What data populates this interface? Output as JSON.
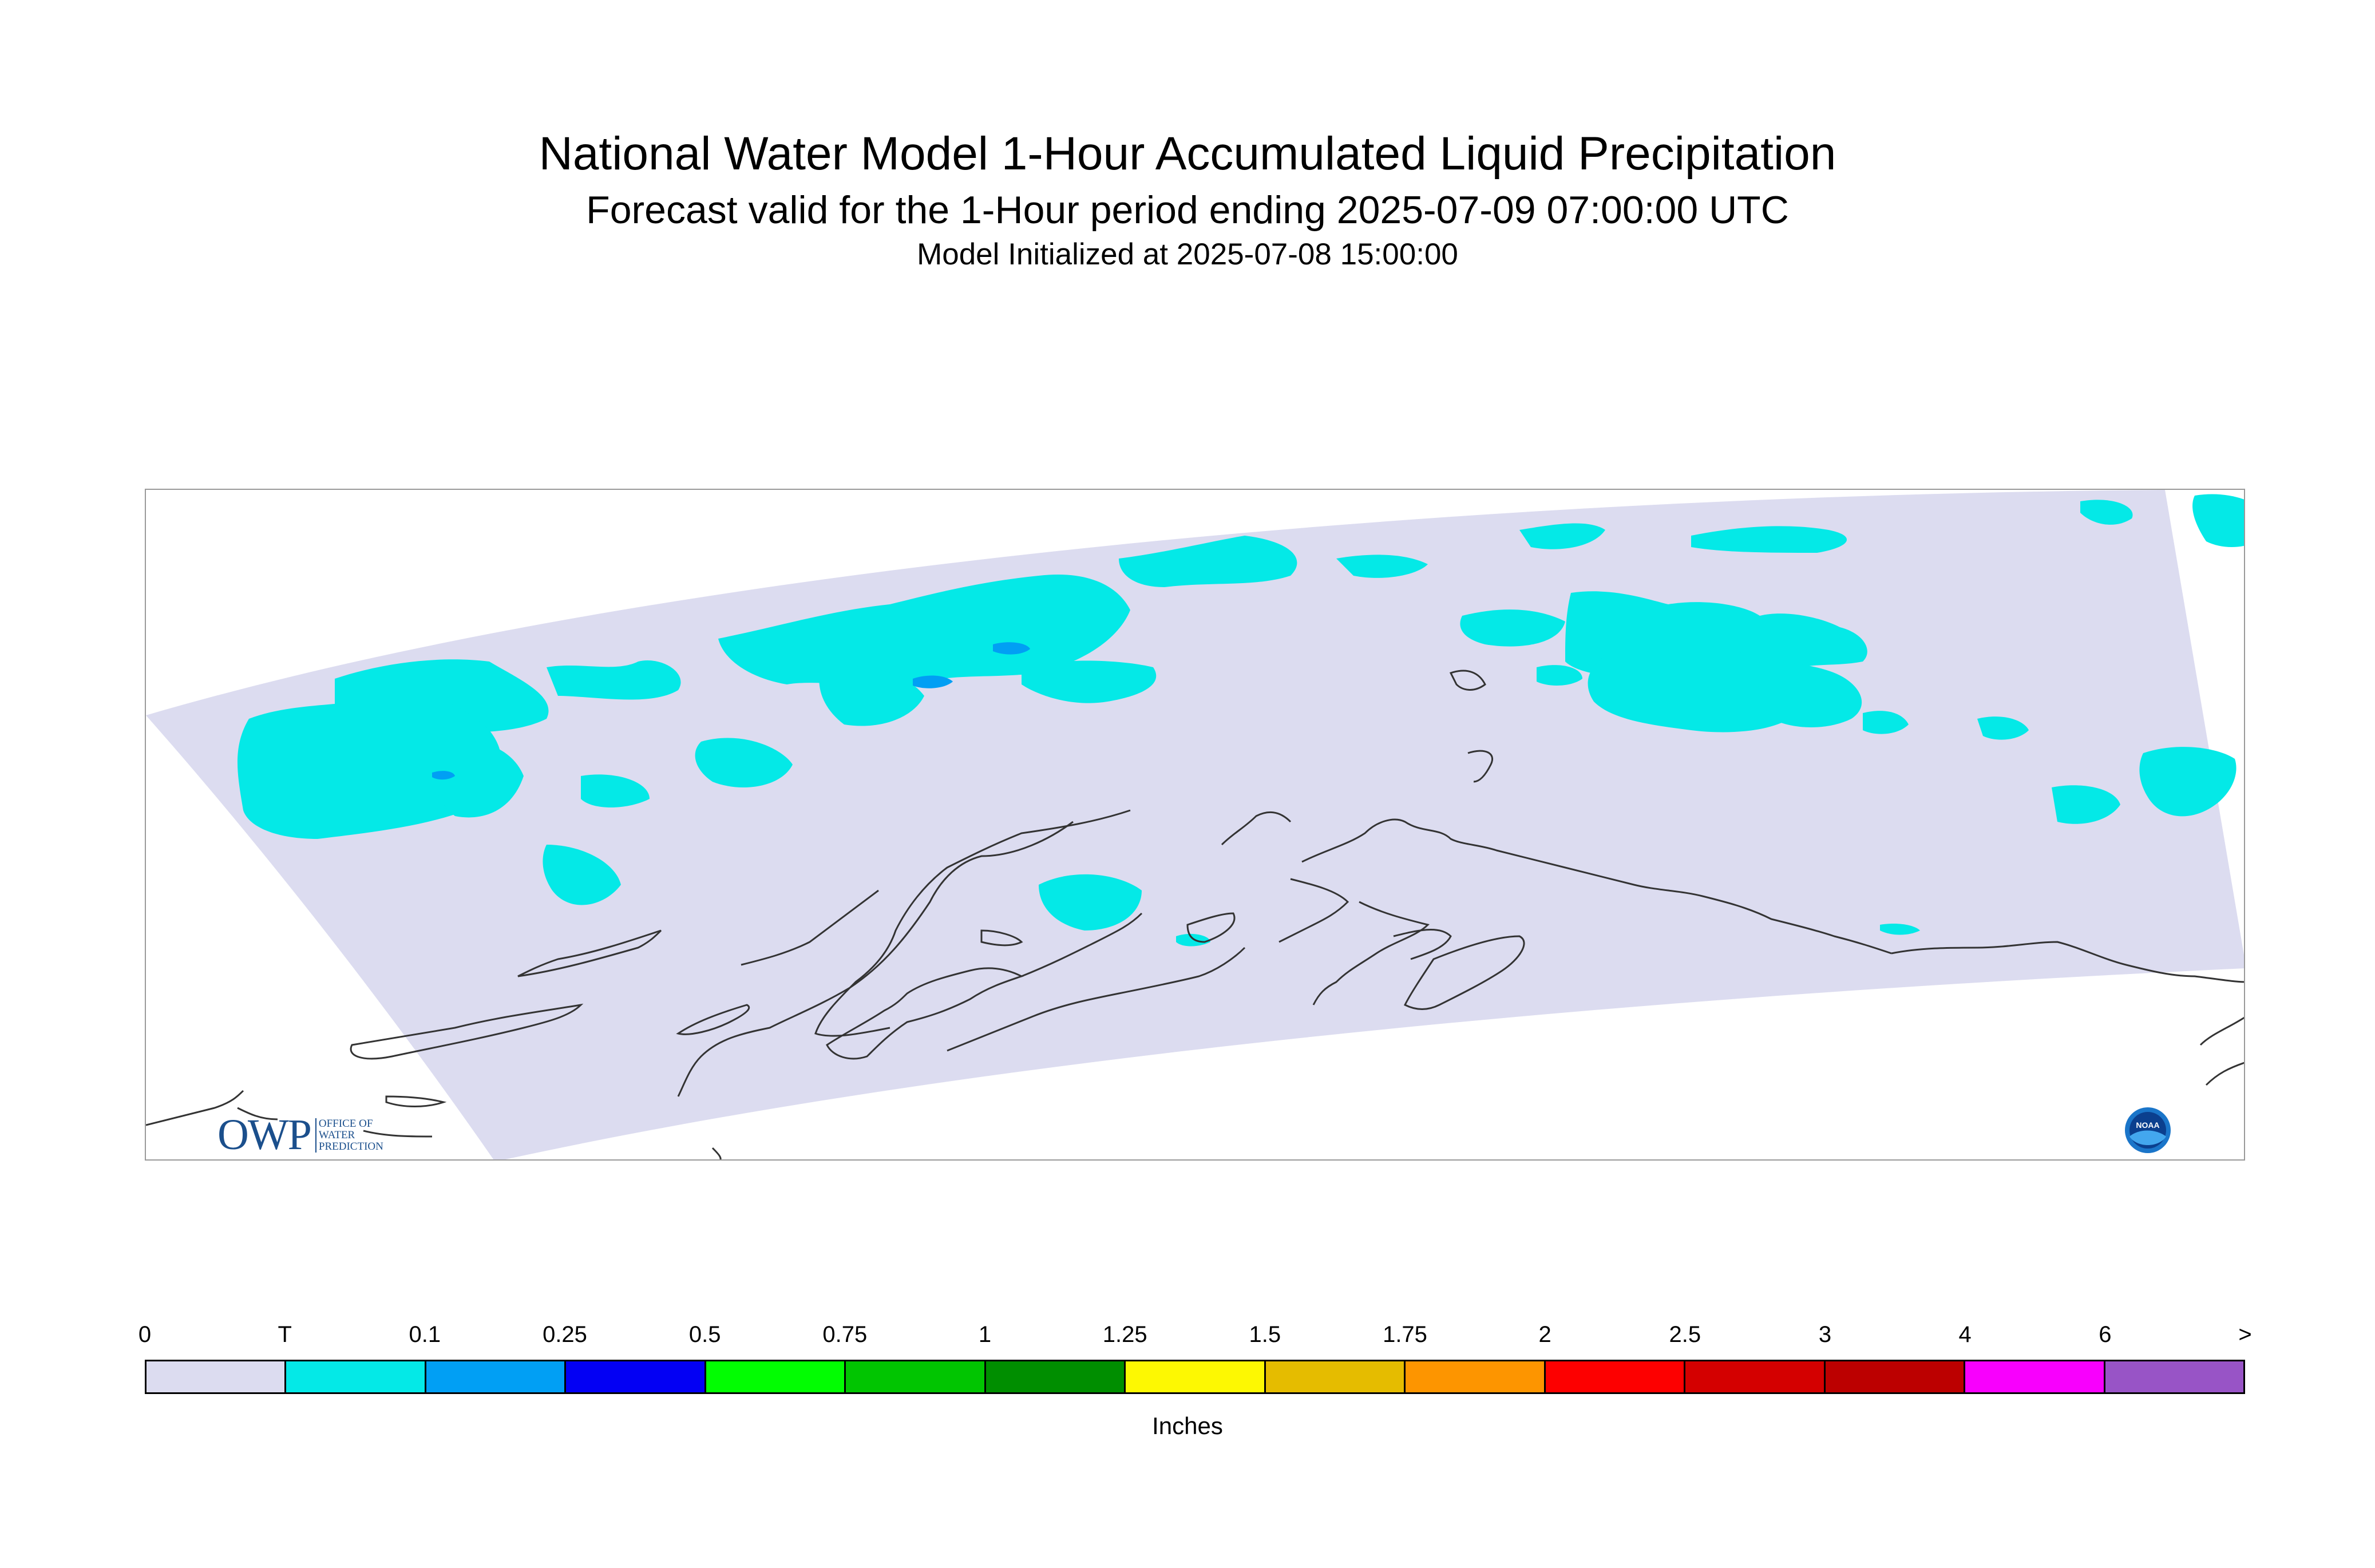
{
  "title": {
    "main": "National Water Model 1-Hour Accumulated Liquid Precipitation",
    "valid": "Forecast valid for the 1-Hour period ending 2025-07-09 07:00:00 UTC",
    "init": "Model Initialized at 2025-07-08 15:00:00"
  },
  "logos": {
    "owp_mark": "OWP",
    "owp_text": [
      "OFFICE OF",
      "WATER",
      "PREDICTION"
    ],
    "noaa_text": "NOAA"
  },
  "legend": {
    "units": "Inches",
    "tick_labels": [
      "0",
      "T",
      "0.1",
      "0.25",
      "0.5",
      "0.75",
      "1",
      "1.25",
      "1.5",
      "1.75",
      "2",
      "2.5",
      "3",
      "4",
      "6",
      ">"
    ],
    "colors": [
      "#dcdcf0",
      "#04e9e7",
      "#019ff4",
      "#0300f4",
      "#02fd02",
      "#01c501",
      "#008e00",
      "#fdf802",
      "#e5bc00",
      "#fd9500",
      "#fd0000",
      "#d40000",
      "#bc0000",
      "#f800fd",
      "#9854c6"
    ]
  },
  "map": {
    "domain_color": "#dcdcf0",
    "precip_color": "#04e9e7",
    "heavier_color": "#019ff4",
    "coast_color": "#333333"
  }
}
